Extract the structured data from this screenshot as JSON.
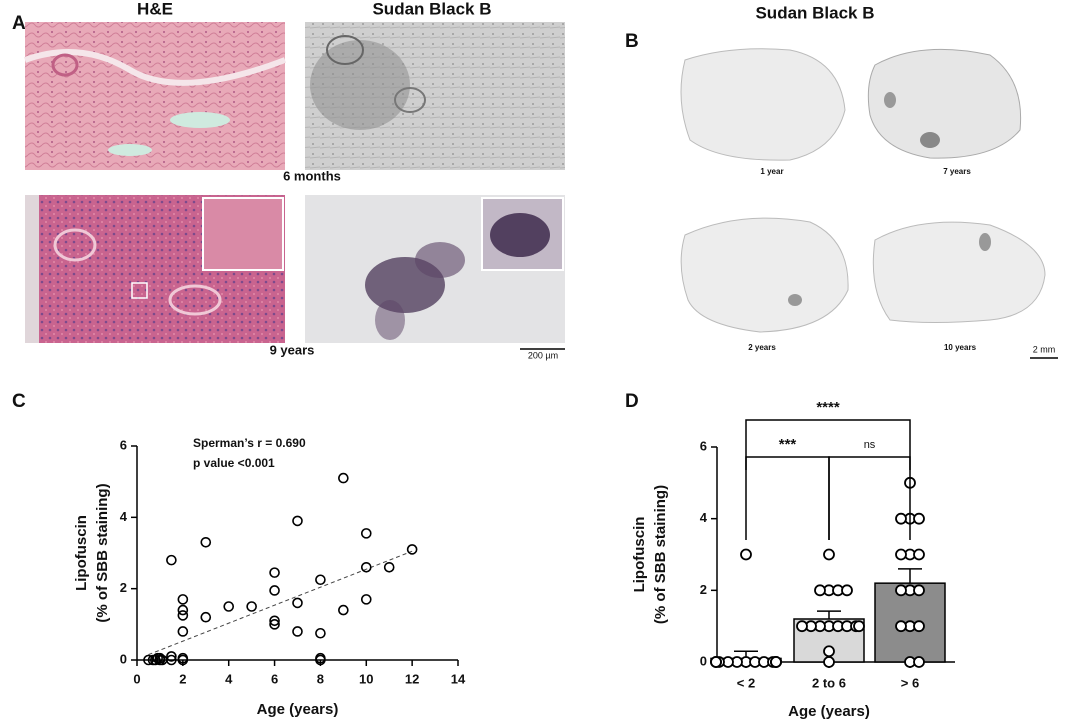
{
  "panel_labels": [
    "A",
    "B",
    "C",
    "D"
  ],
  "panel_a": {
    "columns": [
      "H&E",
      "Sudan Black B"
    ],
    "rows": [
      "6 months",
      "9  years"
    ],
    "scale_bar": "200 µm"
  },
  "panel_b": {
    "title": "Sudan Black B",
    "images": [
      "1 year",
      "7 years",
      "2 years",
      "10 years"
    ],
    "scale_bar": "2 mm"
  },
  "chart_data": [
    {
      "type": "scatter",
      "annotations": [
        "Sperman’s r = 0.690",
        "p value <0.001"
      ],
      "x_label": "Age (years)",
      "y_label": [
        "Lipofuscin",
        "(% of SBB staining)"
      ],
      "x": [
        0.5,
        0.7,
        0.8,
        1,
        1,
        1.1,
        0.9,
        1.5,
        1.5,
        1.5,
        2,
        2,
        2,
        2,
        2,
        2,
        3,
        3,
        4,
        5,
        6,
        6,
        6,
        6,
        7,
        7,
        7,
        8,
        8,
        8,
        8,
        9,
        9,
        10,
        10,
        10,
        11,
        12
      ],
      "y": [
        0,
        0,
        0,
        0,
        0.05,
        0,
        0.05,
        0.1,
        0,
        2.8,
        1.7,
        1.4,
        1.25,
        0.8,
        0.05,
        0,
        3.3,
        1.2,
        1.5,
        1.5,
        2.45,
        1.95,
        1.1,
        1.0,
        3.9,
        1.6,
        0.8,
        2.25,
        0.75,
        0.05,
        0,
        5.1,
        1.4,
        3.55,
        2.6,
        1.7,
        2.6,
        3.1
      ],
      "fit": {
        "x": [
          0.5,
          12
        ],
        "y": [
          0.15,
          3.05
        ]
      },
      "xlim": [
        0,
        14
      ],
      "xticks": [
        0,
        2,
        4,
        6,
        8,
        10,
        12,
        14
      ],
      "ylim": [
        0,
        6
      ],
      "yticks": [
        0,
        2,
        4,
        6
      ]
    },
    {
      "type": "bar",
      "x_label": "Age (years)",
      "y_label": [
        "Lipofuscin",
        "(% of SBB staining)"
      ],
      "categories": [
        "< 2",
        "2 to 6",
        "> 6"
      ],
      "values": [
        0.1,
        1.2,
        2.2
      ],
      "errors": [
        0.2,
        0.22,
        0.4
      ],
      "colors": [
        "#ffffff",
        "#d9d9d9",
        "#8c8c8c"
      ],
      "points": [
        [
          3,
          0,
          0,
          0,
          0,
          0,
          0,
          0,
          0,
          0,
          0,
          0,
          0,
          0,
          0
        ],
        [
          3,
          2,
          2,
          2,
          2,
          1,
          1,
          1,
          1,
          1,
          1,
          1,
          1,
          0.3,
          0
        ],
        [
          5,
          4,
          4,
          4,
          3,
          3,
          3,
          2,
          2,
          2,
          1,
          1,
          1,
          0,
          0
        ]
      ],
      "significance": [
        "****",
        "***",
        "ns"
      ],
      "ylim": [
        0,
        6
      ],
      "yticks": [
        0,
        2,
        4,
        6
      ]
    }
  ]
}
